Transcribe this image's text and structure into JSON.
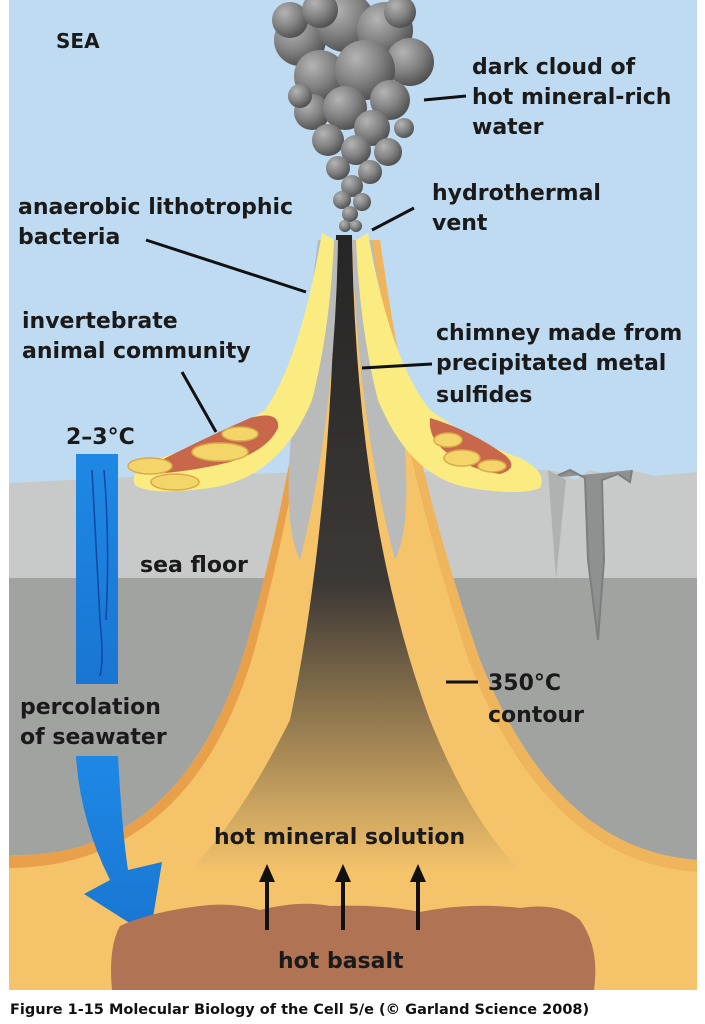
{
  "colors": {
    "sea": "#bfdbf1",
    "seafloor_top": "#c6c8c7",
    "seafloor_lower": "#a1a3a1",
    "orange_layer": "#f5c369",
    "orange_edge": "#e8a04a",
    "yellow_community": "#fbec82",
    "bacteria_brown": "#c8674a",
    "basalt": "#b07353",
    "smoke": "#7b7b7b",
    "vent": "#2b2b2b",
    "water_blue": "#1e88e5"
  },
  "labels": {
    "sea": "SEA",
    "dark_cloud": [
      "dark cloud of",
      "hot mineral-rich",
      "water"
    ],
    "vent": [
      "hydrothermal",
      "vent"
    ],
    "bacteria": [
      "anaerobic lithotrophic",
      "bacteria"
    ],
    "invertebrate": [
      "invertebrate",
      "animal community"
    ],
    "chimney": [
      "chimney made from",
      "precipitated metal",
      "sulfides"
    ],
    "temp_cold": "2–3°C",
    "sea_floor": "sea floor",
    "contour": [
      "350°C",
      "contour"
    ],
    "percolation": [
      "percolation",
      "of seawater"
    ],
    "solution": "hot mineral solution",
    "basalt": "hot basalt"
  },
  "caption": "Figure 1-15  Molecular Biology of the Cell 5/e (© Garland Science 2008)"
}
